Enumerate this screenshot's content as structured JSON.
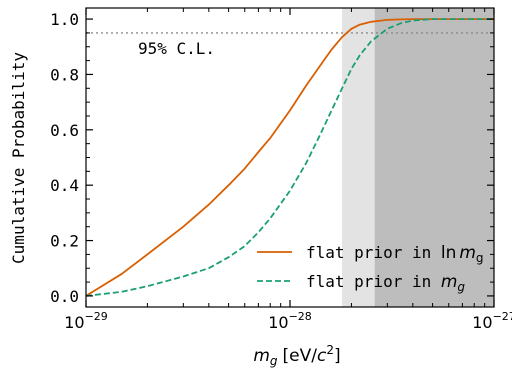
{
  "chart_data": {
    "type": "line",
    "xscale": "log",
    "xlim": [
      1e-29,
      1e-27
    ],
    "ylim": [
      -0.04,
      1.04
    ],
    "xticks": [
      1e-29,
      1e-28,
      1e-27
    ],
    "xtick_labels": [
      {
        "base": "10",
        "exp": "−29"
      },
      {
        "base": "10",
        "exp": "−28"
      },
      {
        "base": "10",
        "exp": "−27"
      }
    ],
    "yticks": [
      0.0,
      0.2,
      0.4,
      0.6,
      0.8,
      1.0
    ],
    "ytick_labels": [
      "0.0",
      "0.2",
      "0.4",
      "0.6",
      "0.8",
      "1.0"
    ],
    "ylabel": "Cumulative Probability",
    "xlabel": {
      "symbol": "m",
      "sub": "g",
      "unit_open": "[eV/",
      "unit_var": "c",
      "unit_exp": "2",
      "unit_close": "]"
    },
    "grid": false,
    "shaded_regions": [
      {
        "xmin": 1.8e-28,
        "xmax": 2.6e-28,
        "color": "#e3e3e3"
      },
      {
        "xmin": 2.6e-28,
        "xmax": 1e-27,
        "color": "#bdbdbd"
      }
    ],
    "reference_line": {
      "y": 0.95,
      "label": "95% C.L.",
      "color": "#8a8a8a"
    },
    "series": [
      {
        "legend": {
          "prefix": "flat prior in ",
          "func": "ln",
          "symbol": "m",
          "sub": "g"
        },
        "color": "#d95f02",
        "dash": "solid",
        "x": [
          1e-29,
          1.5e-29,
          2e-29,
          3e-29,
          4e-29,
          5e-29,
          6e-29,
          7e-29,
          8e-29,
          1e-28,
          1.2e-28,
          1.4e-28,
          1.6e-28,
          1.8e-28,
          2e-28,
          2.2e-28,
          2.5e-28,
          3e-28,
          3.5e-28,
          4e-28,
          5e-28,
          7e-28,
          1e-27
        ],
        "y": [
          0.0,
          0.08,
          0.15,
          0.25,
          0.33,
          0.4,
          0.46,
          0.52,
          0.57,
          0.67,
          0.76,
          0.83,
          0.89,
          0.935,
          0.965,
          0.98,
          0.99,
          0.997,
          0.999,
          1.0,
          1.0,
          1.0,
          1.0
        ]
      },
      {
        "legend": {
          "prefix": "flat prior in ",
          "func": "",
          "symbol": "m",
          "sub": "g"
        },
        "color": "#1b9e77",
        "dash": "dashed",
        "x": [
          1e-29,
          1.5e-29,
          2e-29,
          3e-29,
          4e-29,
          5e-29,
          6e-29,
          7e-29,
          8e-29,
          1e-28,
          1.2e-28,
          1.4e-28,
          1.6e-28,
          1.8e-28,
          2e-28,
          2.2e-28,
          2.5e-28,
          3e-28,
          3.5e-28,
          4e-28,
          5e-28,
          7e-28,
          1e-27
        ],
        "y": [
          0.0,
          0.015,
          0.035,
          0.07,
          0.1,
          0.14,
          0.18,
          0.23,
          0.28,
          0.38,
          0.48,
          0.58,
          0.67,
          0.75,
          0.82,
          0.87,
          0.92,
          0.965,
          0.985,
          0.995,
          1.0,
          1.0,
          1.0
        ]
      }
    ]
  }
}
